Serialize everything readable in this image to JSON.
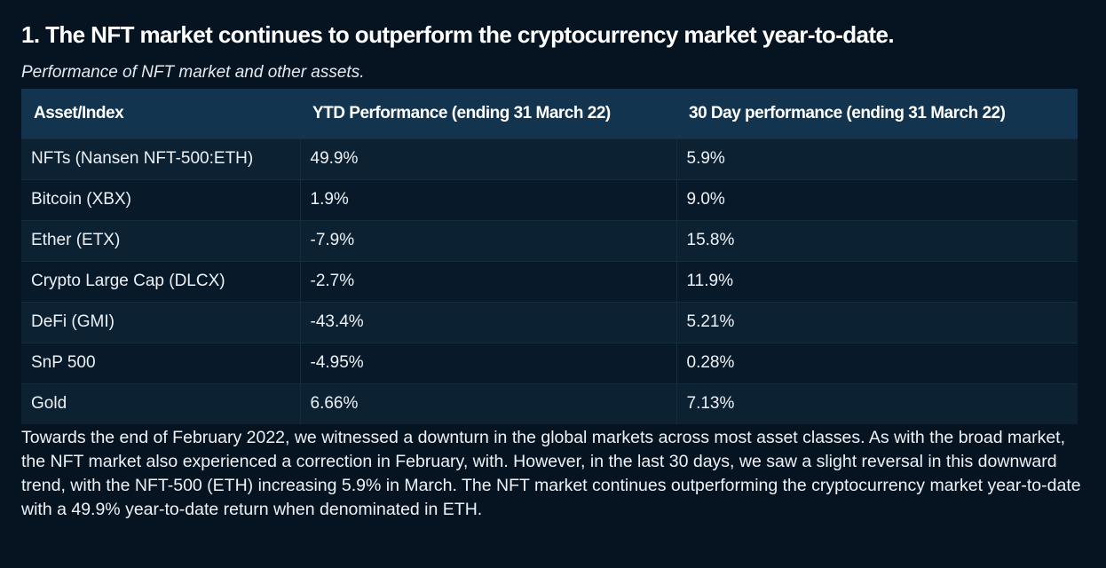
{
  "heading": "1. The NFT market continues to outperform the cryptocurrency market year-to-date.",
  "subtitle": "Performance of NFT market and other assets.",
  "table": {
    "headers": [
      "Asset/Index",
      "YTD Performance (ending 31 March 22)",
      "30 Day performance (ending 31 March 22)"
    ],
    "rows": [
      [
        "NFTs (Nansen NFT-500:ETH)",
        "49.9%",
        "5.9%"
      ],
      [
        "Bitcoin (XBX)",
        "1.9%",
        "9.0%"
      ],
      [
        "Ether (ETX)",
        "-7.9%",
        "15.8%"
      ],
      [
        "Crypto Large Cap (DLCX)",
        "-2.7%",
        "11.9%"
      ],
      [
        "DeFi (GMI)",
        "-43.4%",
        "5.21%"
      ],
      [
        "SnP 500",
        "-4.95%",
        "0.28%"
      ],
      [
        "Gold",
        "6.66%",
        "7.13%"
      ]
    ]
  },
  "paragraph": "Towards the end of February 2022, we witnessed a downturn in the global markets across most asset classes. As with the broad market, the NFT market also experienced a correction in February, with. However, in the last 30 days, we saw a slight reversal in this downward trend, with the NFT-500 (ETH) increasing 5.9% in March. The NFT market continues outperforming the cryptocurrency market year-to-date with a 49.9% year-to-date return when denominated in ETH.",
  "colors": {
    "background": "#061422",
    "header_row": "#12344f",
    "row_odd": "#0c2233",
    "row_even": "#081a29"
  }
}
